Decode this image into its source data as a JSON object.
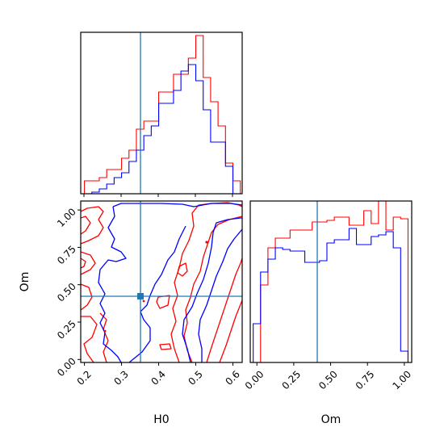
{
  "chart_data": {
    "type": "corner",
    "parameters": [
      "H0",
      "Om"
    ],
    "colors": {
      "red": "#ff0000",
      "blue": "#0000ff",
      "truth": "#1f77b4"
    },
    "truth": {
      "H0": 0.348,
      "Om": 0.42
    },
    "panels": [
      {
        "name": "H0-histogram",
        "type": "step-histogram",
        "bin_edges": [
          0.2,
          0.22,
          0.24,
          0.26,
          0.28,
          0.3,
          0.32,
          0.34,
          0.36,
          0.38,
          0.4,
          0.42,
          0.44,
          0.46,
          0.48,
          0.5,
          0.52,
          0.54,
          0.56,
          0.58,
          0.6,
          0.62
        ],
        "series": [
          {
            "color": "#ff0000",
            "values": [
              0.08,
              0.08,
              0.1,
              0.15,
              0.15,
              0.22,
              0.27,
              0.4,
              0.45,
              0.45,
              0.63,
              0.63,
              0.74,
              0.74,
              0.84,
              0.98,
              0.72,
              0.57,
              0.42,
              0.19,
              0.08
            ]
          },
          {
            "color": "#0000ff",
            "values": [
              0.0,
              0.01,
              0.03,
              0.06,
              0.1,
              0.13,
              0.2,
              0.27,
              0.36,
              0.42,
              0.56,
              0.56,
              0.64,
              0.76,
              0.8,
              0.7,
              0.52,
              0.32,
              0.32,
              0.17,
              0.0
            ]
          }
        ]
      },
      {
        "name": "H0-Om-contours",
        "type": "contour",
        "xlim": [
          0.19,
          0.625
        ],
        "ylim": [
          -0.02,
          1.06
        ],
        "xticks": [
          "0.2",
          "0.3",
          "0.4",
          "0.5",
          "0.6"
        ],
        "yticks": [
          "0.00",
          "0.25",
          "0.50",
          "0.75",
          "1.00"
        ],
        "xlabel": "H0",
        "ylabel": "Om"
      },
      {
        "name": "Om-histogram",
        "type": "step-histogram",
        "bin_edges": [
          -0.025,
          0.025,
          0.075,
          0.125,
          0.175,
          0.225,
          0.275,
          0.325,
          0.375,
          0.425,
          0.475,
          0.525,
          0.575,
          0.625,
          0.675,
          0.725,
          0.775,
          0.825,
          0.875,
          0.925,
          0.975,
          1.025
        ],
        "series": [
          {
            "color": "#ff0000",
            "values": [
              0.0,
              0.48,
              0.71,
              0.77,
              0.77,
              0.82,
              0.82,
              0.82,
              0.87,
              0.87,
              0.88,
              0.9,
              0.9,
              0.85,
              0.85,
              0.94,
              0.86,
              1.0,
              0.82,
              0.9,
              0.89
            ]
          },
          {
            "color": "#0000ff",
            "values": [
              0.24,
              0.56,
              0.64,
              0.71,
              0.7,
              0.69,
              0.69,
              0.62,
              0.62,
              0.63,
              0.74,
              0.76,
              0.76,
              0.83,
              0.73,
              0.73,
              0.78,
              0.79,
              0.81,
              0.71,
              0.07
            ]
          }
        ],
        "xlim": [
          -0.045,
          1.05
        ],
        "xticks": [
          "0.00",
          "0.25",
          "0.50",
          "0.75",
          "1.00"
        ],
        "xlabel": "Om"
      }
    ]
  }
}
